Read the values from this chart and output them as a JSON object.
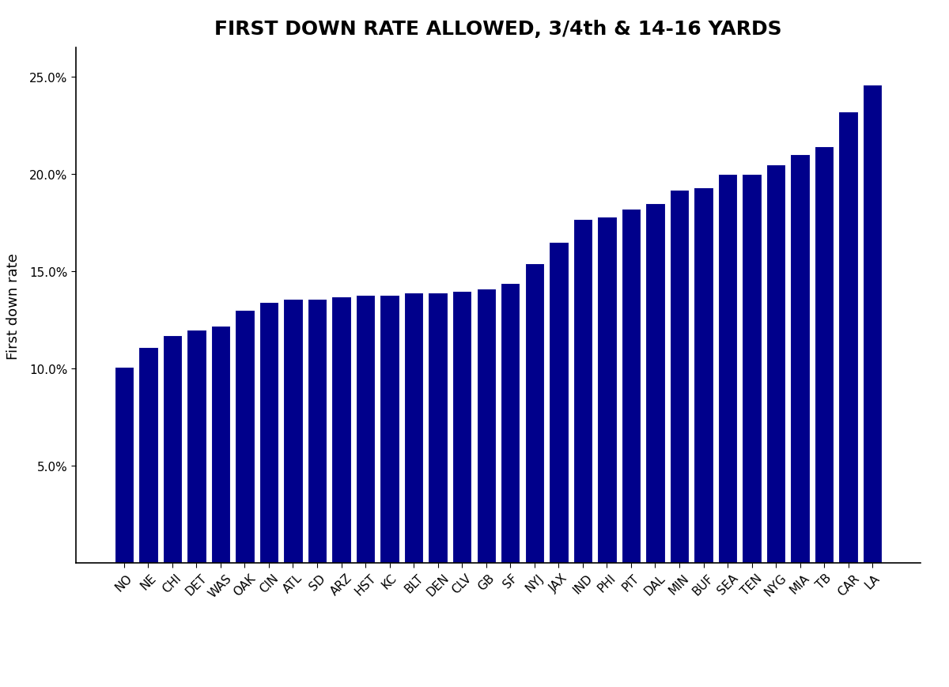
{
  "title": "FIRST DOWN RATE ALLOWED, 3/4th & 14-16 YARDS",
  "ylabel": "First down rate",
  "bar_color": "#00008B",
  "background_color": "#ffffff",
  "categories": [
    "NO",
    "NE",
    "CHI",
    "DET",
    "WAS",
    "OAK",
    "CIN",
    "ATL",
    "SD",
    "ARZ",
    "HST",
    "KC",
    "BLT",
    "DEN",
    "CLV",
    "GB",
    "SF",
    "NYJ",
    "JAX",
    "IND",
    "PHI",
    "PIT",
    "DAL",
    "MIN",
    "BUF",
    "SEA",
    "TEN",
    "NYG",
    "MIA",
    "TB",
    "CAR",
    "LA"
  ],
  "values": [
    0.101,
    0.111,
    0.117,
    0.12,
    0.122,
    0.13,
    0.134,
    0.136,
    0.136,
    0.137,
    0.138,
    0.138,
    0.139,
    0.139,
    0.14,
    0.141,
    0.144,
    0.154,
    0.165,
    0.177,
    0.178,
    0.182,
    0.185,
    0.192,
    0.193,
    0.2,
    0.2,
    0.205,
    0.21,
    0.214,
    0.232,
    0.246
  ],
  "ylim": [
    0,
    0.265
  ],
  "yticks": [
    0.05,
    0.1,
    0.15,
    0.2,
    0.25
  ],
  "title_fontsize": 18,
  "ylabel_fontsize": 13,
  "tick_fontsize": 11,
  "xtick_rotation": 45
}
